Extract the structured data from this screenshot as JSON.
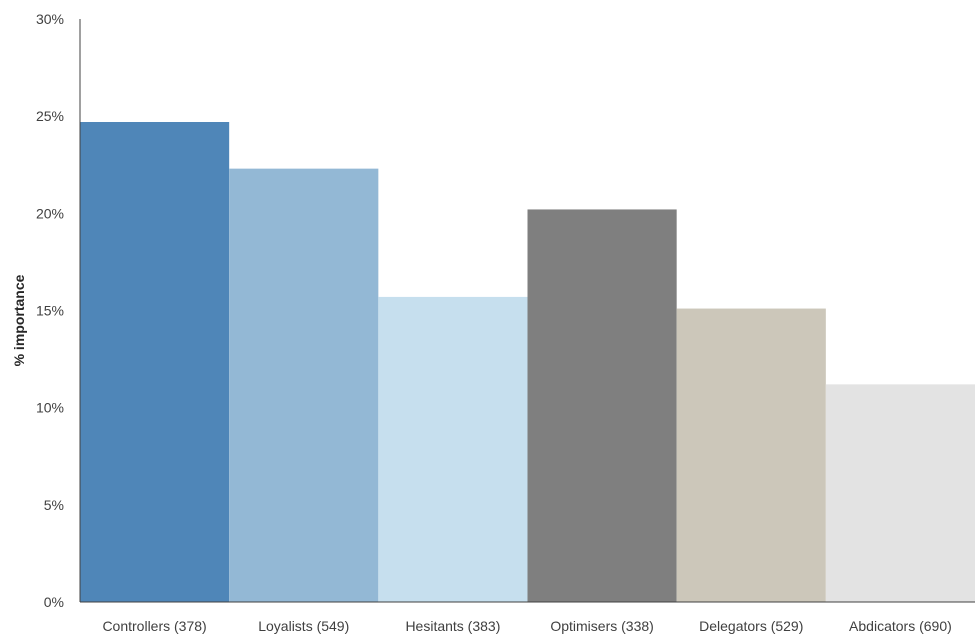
{
  "chart_data": {
    "type": "bar",
    "title": "",
    "xlabel": "",
    "ylabel": "% importance",
    "ylim": [
      0,
      30
    ],
    "y_ticks": [
      "0%",
      "5%",
      "10%",
      "15%",
      "20%",
      "25%",
      "30%"
    ],
    "y_tick_values": [
      0,
      5,
      10,
      15,
      20,
      25,
      30
    ],
    "grid": false,
    "legend": "none",
    "categories": [
      "Controllers (378)",
      "Loyalists (549)",
      "Hesitants (383)",
      "Optimisers (338)",
      "Delegators (529)",
      "Abdicators (690)"
    ],
    "values": [
      24.7,
      22.3,
      15.7,
      20.2,
      15.1,
      11.2
    ],
    "colors": [
      "#4f86b8",
      "#93b8d5",
      "#c6dfee",
      "#7f7f7f",
      "#ccc7ba",
      "#e3e3e3"
    ],
    "axis_color": "#404040"
  }
}
